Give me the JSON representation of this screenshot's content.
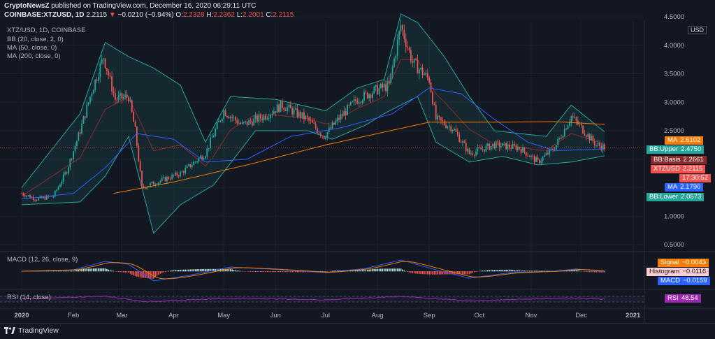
{
  "header": {
    "publisher": "CryptoNewsZ",
    "published_text": "published on TradingView.com, December 16, 2020 06:29:11 UTC",
    "symbol": "COINBASE:XTZUSD, 1D",
    "last": "2.2115",
    "change_arrow": "▼",
    "change": "−0.0210 (−0.94%)",
    "o_label": "O:",
    "o": "2.2328",
    "h_label": "H:",
    "h": "2.2362",
    "l_label": "L:",
    "l": "2.2001",
    "c_label": "C:",
    "c": "2.2115"
  },
  "indicators": {
    "title": "XTZ/USD, 1D, COINBASE",
    "bb": "BB (20, close, 2, 0)",
    "ma50": "MA (50, close, 0)",
    "ma200": "MA (200, close, 0)",
    "macd": "MACD (12, 26, close, 9)",
    "rsi": "RSI (14, close)"
  },
  "currency_label": "USD",
  "tags": {
    "ma200": {
      "key": "MA",
      "value": "2.6102",
      "color": "#f57c00"
    },
    "bb_upper": {
      "key": "BB:Upper",
      "value": "2.4750",
      "color": "#26a69a"
    },
    "bb_basis": {
      "key": "BB:Basis",
      "value": "2.2661",
      "color": "#8a2b2b"
    },
    "price": {
      "key": "XTZUSD",
      "value": "2.2115",
      "color": "#ef5350"
    },
    "countdown": {
      "value": "17:30:52",
      "color": "#ef5350"
    },
    "ma50": {
      "key": "MA",
      "value": "2.1790",
      "color": "#2962ff"
    },
    "bb_lower": {
      "key": "BB:Lower",
      "value": "2.0573",
      "color": "#26a69a"
    },
    "signal": {
      "key": "Signal",
      "value": "−0.0043",
      "color": "#f57c00"
    },
    "histogram": {
      "key": "Histogram",
      "value": "−0.0116",
      "color": "#ffcdd2"
    },
    "macd": {
      "key": "MACD",
      "value": "−0.0159",
      "color": "#2962ff"
    },
    "rsi": {
      "key": "RSI",
      "value": "48.54",
      "color": "#9c27b0"
    }
  },
  "footer": {
    "brand": "TradingView"
  },
  "chart_data": {
    "type": "candlestick",
    "title": "XTZ/USD, 1D, COINBASE",
    "ylabel": "USD",
    "ylim": [
      0.5,
      4.5
    ],
    "y_ticks": [
      "4.5000",
      "4.0000",
      "3.5000",
      "3.0000",
      "2.5000",
      "2.0000",
      "1.5000",
      "1.0000",
      "0.5000"
    ],
    "x_ticks": [
      "2020",
      "Feb",
      "Mar",
      "Apr",
      "May",
      "Jun",
      "Jul",
      "Aug",
      "Sep",
      "Oct",
      "Nov",
      "Dec",
      "2021"
    ],
    "grid": true,
    "close_anchors": [
      {
        "date": "2020-01-01",
        "close": 1.4
      },
      {
        "date": "2020-01-10",
        "close": 1.3
      },
      {
        "date": "2020-01-20",
        "close": 1.35
      },
      {
        "date": "2020-01-28",
        "close": 1.8
      },
      {
        "date": "2020-02-05",
        "close": 2.5
      },
      {
        "date": "2020-02-12",
        "close": 3.2
      },
      {
        "date": "2020-02-19",
        "close": 3.8
      },
      {
        "date": "2020-02-26",
        "close": 3.05
      },
      {
        "date": "2020-03-05",
        "close": 3.1
      },
      {
        "date": "2020-03-09",
        "close": 2.5
      },
      {
        "date": "2020-03-13",
        "close": 1.5
      },
      {
        "date": "2020-03-22",
        "close": 1.6
      },
      {
        "date": "2020-04-05",
        "close": 1.75
      },
      {
        "date": "2020-04-20",
        "close": 2.1
      },
      {
        "date": "2020-05-01",
        "close": 2.85
      },
      {
        "date": "2020-05-12",
        "close": 2.6
      },
      {
        "date": "2020-05-25",
        "close": 2.75
      },
      {
        "date": "2020-06-05",
        "close": 2.95
      },
      {
        "date": "2020-06-20",
        "close": 2.7
      },
      {
        "date": "2020-06-30",
        "close": 2.4
      },
      {
        "date": "2020-07-10",
        "close": 2.75
      },
      {
        "date": "2020-07-20",
        "close": 3.05
      },
      {
        "date": "2020-07-30",
        "close": 3.2
      },
      {
        "date": "2020-08-08",
        "close": 3.3
      },
      {
        "date": "2020-08-15",
        "close": 4.35
      },
      {
        "date": "2020-08-22",
        "close": 3.7
      },
      {
        "date": "2020-09-01",
        "close": 3.4
      },
      {
        "date": "2020-09-05",
        "close": 2.7
      },
      {
        "date": "2020-09-15",
        "close": 2.55
      },
      {
        "date": "2020-09-25",
        "close": 2.1
      },
      {
        "date": "2020-10-10",
        "close": 2.25
      },
      {
        "date": "2020-10-25",
        "close": 2.2
      },
      {
        "date": "2020-11-05",
        "close": 1.95
      },
      {
        "date": "2020-11-15",
        "close": 2.2
      },
      {
        "date": "2020-11-25",
        "close": 2.75
      },
      {
        "date": "2020-12-01",
        "close": 2.55
      },
      {
        "date": "2020-12-10",
        "close": 2.25
      },
      {
        "date": "2020-12-15",
        "close": 2.21
      }
    ],
    "ma50_anchors": [
      {
        "date": "2020-01-01",
        "value": 1.3
      },
      {
        "date": "2020-02-01",
        "value": 1.4
      },
      {
        "date": "2020-02-20",
        "value": 1.85
      },
      {
        "date": "2020-03-10",
        "value": 2.45
      },
      {
        "date": "2020-04-01",
        "value": 2.35
      },
      {
        "date": "2020-04-20",
        "value": 1.95
      },
      {
        "date": "2020-05-15",
        "value": 2.0
      },
      {
        "date": "2020-06-10",
        "value": 2.4
      },
      {
        "date": "2020-07-10",
        "value": 2.55
      },
      {
        "date": "2020-08-10",
        "value": 2.8
      },
      {
        "date": "2020-09-01",
        "value": 3.25
      },
      {
        "date": "2020-09-20",
        "value": 3.15
      },
      {
        "date": "2020-10-10",
        "value": 2.7
      },
      {
        "date": "2020-10-30",
        "value": 2.3
      },
      {
        "date": "2020-11-15",
        "value": 2.15
      },
      {
        "date": "2020-12-15",
        "value": 2.18
      }
    ],
    "ma200_anchors": [
      {
        "date": "2020-02-25",
        "value": 1.4
      },
      {
        "date": "2020-04-01",
        "value": 1.6
      },
      {
        "date": "2020-05-15",
        "value": 1.9
      },
      {
        "date": "2020-07-01",
        "value": 2.25
      },
      {
        "date": "2020-08-01",
        "value": 2.45
      },
      {
        "date": "2020-09-01",
        "value": 2.65
      },
      {
        "date": "2020-10-15",
        "value": 2.65
      },
      {
        "date": "2020-11-15",
        "value": 2.66
      },
      {
        "date": "2020-12-15",
        "value": 2.61
      }
    ],
    "bb_upper_anchors": [
      {
        "date": "2020-01-01",
        "value": 1.5
      },
      {
        "date": "2020-02-05",
        "value": 2.8
      },
      {
        "date": "2020-02-20",
        "value": 4.05
      },
      {
        "date": "2020-03-05",
        "value": 3.8
      },
      {
        "date": "2020-03-20",
        "value": 3.6
      },
      {
        "date": "2020-04-05",
        "value": 3.3
      },
      {
        "date": "2020-04-20",
        "value": 2.3
      },
      {
        "date": "2020-05-05",
        "value": 3.1
      },
      {
        "date": "2020-06-01",
        "value": 3.05
      },
      {
        "date": "2020-07-01",
        "value": 2.85
      },
      {
        "date": "2020-07-20",
        "value": 3.25
      },
      {
        "date": "2020-08-05",
        "value": 3.4
      },
      {
        "date": "2020-08-15",
        "value": 4.55
      },
      {
        "date": "2020-08-25",
        "value": 4.4
      },
      {
        "date": "2020-09-10",
        "value": 3.8
      },
      {
        "date": "2020-09-25",
        "value": 3.1
      },
      {
        "date": "2020-10-10",
        "value": 2.5
      },
      {
        "date": "2020-11-10",
        "value": 2.4
      },
      {
        "date": "2020-11-25",
        "value": 2.95
      },
      {
        "date": "2020-12-15",
        "value": 2.48
      }
    ],
    "bb_lower_anchors": [
      {
        "date": "2020-01-01",
        "value": 1.2
      },
      {
        "date": "2020-02-05",
        "value": 1.25
      },
      {
        "date": "2020-02-20",
        "value": 1.7
      },
      {
        "date": "2020-03-05",
        "value": 2.4
      },
      {
        "date": "2020-03-20",
        "value": 0.7
      },
      {
        "date": "2020-04-05",
        "value": 1.2
      },
      {
        "date": "2020-04-25",
        "value": 1.55
      },
      {
        "date": "2020-05-20",
        "value": 2.5
      },
      {
        "date": "2020-06-20",
        "value": 2.5
      },
      {
        "date": "2020-07-05",
        "value": 2.35
      },
      {
        "date": "2020-07-25",
        "value": 2.6
      },
      {
        "date": "2020-08-05",
        "value": 2.8
      },
      {
        "date": "2020-08-25",
        "value": 3.1
      },
      {
        "date": "2020-09-05",
        "value": 2.3
      },
      {
        "date": "2020-09-25",
        "value": 1.95
      },
      {
        "date": "2020-10-15",
        "value": 2.05
      },
      {
        "date": "2020-11-05",
        "value": 1.9
      },
      {
        "date": "2020-11-25",
        "value": 1.95
      },
      {
        "date": "2020-12-15",
        "value": 2.06
      }
    ],
    "macd_anchors": [
      {
        "date": "2020-01-01",
        "value": 0.0
      },
      {
        "date": "2020-02-01",
        "value": 0.05
      },
      {
        "date": "2020-02-20",
        "value": 0.35
      },
      {
        "date": "2020-03-05",
        "value": 0.25
      },
      {
        "date": "2020-03-20",
        "value": -0.35
      },
      {
        "date": "2020-04-10",
        "value": -0.15
      },
      {
        "date": "2020-05-05",
        "value": 0.15
      },
      {
        "date": "2020-06-05",
        "value": 0.05
      },
      {
        "date": "2020-07-01",
        "value": -0.05
      },
      {
        "date": "2020-07-25",
        "value": 0.1
      },
      {
        "date": "2020-08-15",
        "value": 0.4
      },
      {
        "date": "2020-09-05",
        "value": 0.05
      },
      {
        "date": "2020-09-25",
        "value": -0.25
      },
      {
        "date": "2020-10-20",
        "value": -0.05
      },
      {
        "date": "2020-11-15",
        "value": 0.0
      },
      {
        "date": "2020-11-28",
        "value": 0.08
      },
      {
        "date": "2020-12-15",
        "value": -0.016
      }
    ],
    "rsi_anchors": [
      {
        "date": "2020-01-01",
        "value": 50
      },
      {
        "date": "2020-02-20",
        "value": 72
      },
      {
        "date": "2020-03-15",
        "value": 32
      },
      {
        "date": "2020-05-05",
        "value": 58
      },
      {
        "date": "2020-07-01",
        "value": 45
      },
      {
        "date": "2020-08-15",
        "value": 70
      },
      {
        "date": "2020-09-25",
        "value": 38
      },
      {
        "date": "2020-11-25",
        "value": 60
      },
      {
        "date": "2020-12-15",
        "value": 48.54
      }
    ]
  }
}
